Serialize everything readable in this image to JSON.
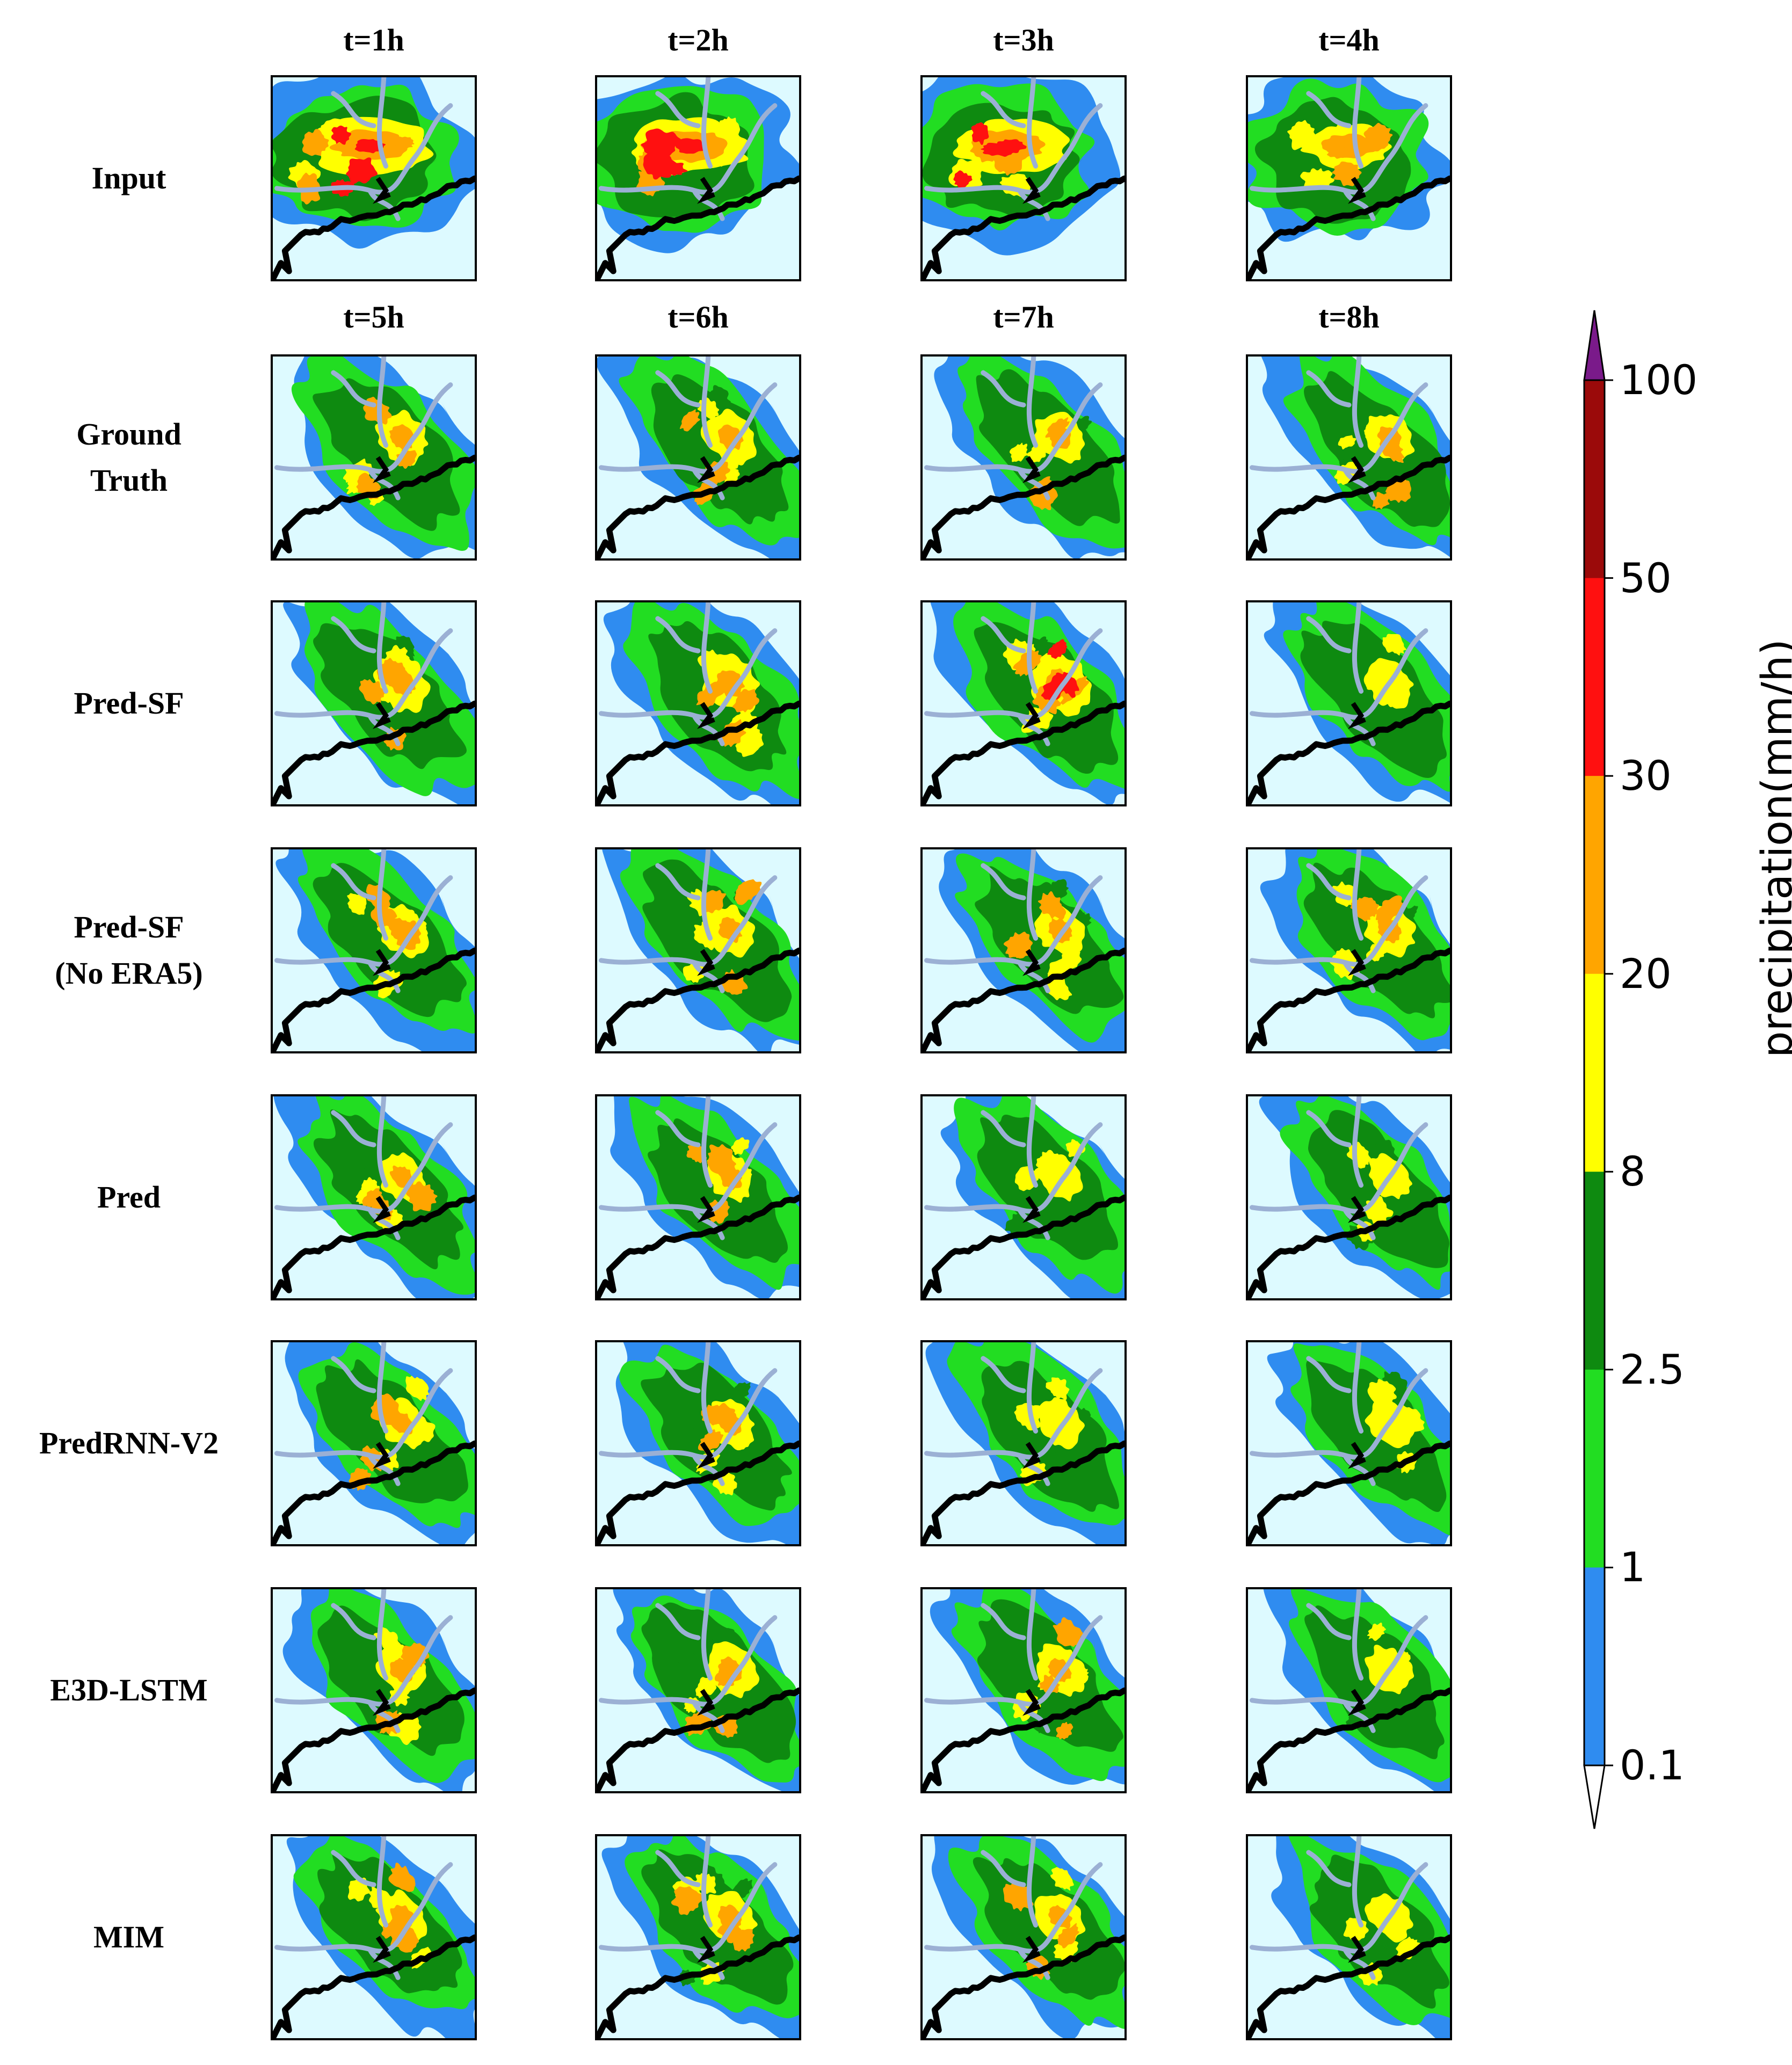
{
  "figure": {
    "column_titles": {
      "input_row": [
        "t=1h",
        "t=2h",
        "t=3h",
        "t=4h"
      ],
      "prediction_rows": [
        "t=5h",
        "t=6h",
        "t=7h",
        "t=8h"
      ]
    },
    "rows": [
      {
        "id": "input",
        "label_lines": [
          "Input"
        ],
        "intensity": [
          0.95,
          1.0,
          0.9,
          0.55
        ]
      },
      {
        "id": "ground-truth",
        "label_lines": [
          "Ground",
          "Truth"
        ],
        "intensity": [
          0.6,
          0.62,
          0.55,
          0.5
        ]
      },
      {
        "id": "pred-sf",
        "label_lines": [
          "Pred-SF"
        ],
        "intensity": [
          0.65,
          0.75,
          0.8,
          0.45
        ]
      },
      {
        "id": "pred-sf-no-era5",
        "label_lines": [
          "Pred-SF",
          "(No ERA5)"
        ],
        "intensity": [
          0.55,
          0.55,
          0.55,
          0.6
        ]
      },
      {
        "id": "pred",
        "label_lines": [
          "Pred"
        ],
        "intensity": [
          0.5,
          0.5,
          0.45,
          0.35
        ]
      },
      {
        "id": "predrnn-v2",
        "label_lines": [
          "PredRNN-V2"
        ],
        "intensity": [
          0.5,
          0.5,
          0.48,
          0.45
        ]
      },
      {
        "id": "e3d-lstm",
        "label_lines": [
          "E3D-LSTM"
        ],
        "intensity": [
          0.55,
          0.6,
          0.55,
          0.45
        ]
      },
      {
        "id": "mim",
        "label_lines": [
          "MIM"
        ],
        "intensity": [
          0.55,
          0.58,
          0.5,
          0.42
        ]
      }
    ]
  },
  "colorbar": {
    "title": "precipitation(mm/h)",
    "ticks": [
      "100",
      "50",
      "30",
      "20",
      "8",
      "2.5",
      "1",
      "0.1"
    ],
    "bands": [
      {
        "from": "0.1",
        "to": "1",
        "color": "#2f8cf0"
      },
      {
        "from": "1",
        "to": "2.5",
        "color": "#22dd22"
      },
      {
        "from": "2.5",
        "to": "8",
        "color": "#0e8a10"
      },
      {
        "from": "8",
        "to": "20",
        "color": "#ffff00"
      },
      {
        "from": "20",
        "to": "30",
        "color": "#ffa500"
      },
      {
        "from": "30",
        "to": "50",
        "color": "#ff1010"
      },
      {
        "from": "50",
        "to": "100",
        "color": "#9b0a0a"
      }
    ],
    "extend_high_color": "#7a1a8a",
    "extend_low_color": "#ffffff",
    "background_color": "#ddfaff",
    "coast_color": "#000000",
    "river_color": "#9bb0d4"
  }
}
